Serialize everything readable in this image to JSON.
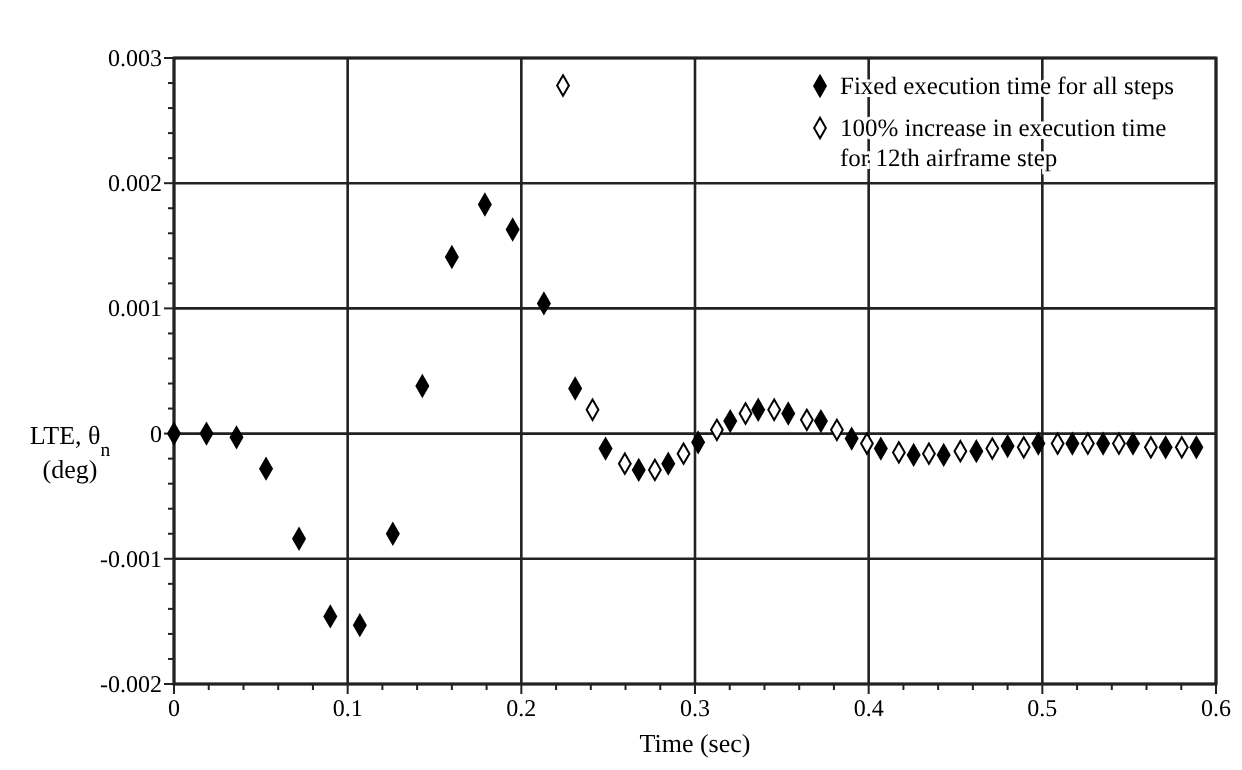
{
  "chart_data": {
    "type": "scatter",
    "xlabel": "Time (sec)",
    "ylabel": "LTE, θ$_{n}$ (deg)",
    "xlim": [
      0,
      0.6
    ],
    "ylim": [
      -0.002,
      0.003
    ],
    "xticks": [
      0,
      {
        "value": 0.02,
        "label": null
      },
      {
        "value": 0.04,
        "label": null
      },
      {
        "value": 0.06,
        "label": null
      },
      {
        "value": 0.08,
        "label": null
      },
      0.1,
      {
        "value": 0.12,
        "label": null
      },
      {
        "value": 0.14,
        "label": null
      },
      {
        "value": 0.16,
        "label": null
      },
      {
        "value": 0.18,
        "label": null
      },
      0.2,
      {
        "value": 0.22,
        "label": null
      },
      {
        "value": 0.24,
        "label": null
      },
      {
        "value": 0.26,
        "label": null
      },
      {
        "value": 0.28,
        "label": null
      },
      0.3,
      {
        "value": 0.32,
        "label": null
      },
      {
        "value": 0.34,
        "label": null
      },
      {
        "value": 0.36,
        "label": null
      },
      {
        "value": 0.38,
        "label": null
      },
      0.4,
      {
        "value": 0.42,
        "label": null
      },
      {
        "value": 0.44,
        "label": null
      },
      {
        "value": 0.46,
        "label": null
      },
      {
        "value": 0.48,
        "label": null
      },
      0.5,
      {
        "value": 0.52,
        "label": null
      },
      {
        "value": 0.54,
        "label": null
      },
      {
        "value": 0.56,
        "label": null
      },
      {
        "value": 0.58,
        "label": null
      },
      0.6
    ],
    "yticks": [
      -0.002,
      {
        "value": -0.0018,
        "label": null
      },
      {
        "value": -0.0016,
        "label": null
      },
      {
        "value": -0.0014,
        "label": null
      },
      {
        "value": -0.0012,
        "label": null
      },
      -0.001,
      {
        "value": -0.0008,
        "label": null
      },
      {
        "value": -0.0006,
        "label": null
      },
      {
        "value": -0.0004,
        "label": null
      },
      {
        "value": -0.0002,
        "label": null
      },
      0,
      {
        "value": 0.0002,
        "label": null
      },
      {
        "value": 0.0004,
        "label": null
      },
      {
        "value": 0.0006,
        "label": null
      },
      {
        "value": 0.0008,
        "label": null
      },
      0.001,
      {
        "value": 0.0012,
        "label": null
      },
      {
        "value": 0.0014,
        "label": null
      },
      {
        "value": 0.0016,
        "label": null
      },
      {
        "value": 0.0018,
        "label": null
      },
      0.002,
      {
        "value": 0.0022,
        "label": null
      },
      {
        "value": 0.0024,
        "label": null
      },
      {
        "value": 0.0026,
        "label": null
      },
      {
        "value": 0.0028,
        "label": null
      },
      0.003
    ],
    "grid": true,
    "legend": "top right",
    "marker": "diamond",
    "series": [
      {
        "name": "Fixed execution time for all steps",
        "color": "#000000",
        "x": [
          0,
          0.0187,
          0.036,
          0.053,
          0.072,
          0.09,
          0.107,
          0.126,
          0.143,
          0.16,
          0.179,
          0.195,
          0.213,
          0.231,
          0.2485,
          0.2676,
          0.2846,
          0.3018,
          0.3203,
          0.3364,
          0.3537,
          0.3725,
          0.3902,
          0.407,
          0.4259,
          0.4432,
          0.462,
          0.48,
          0.4977,
          0.5173,
          0.535,
          0.5522,
          0.571,
          0.5887
        ],
        "values": [
          0,
          0,
          -3e-05,
          -0.00028,
          -0.00084,
          -0.00146,
          -0.00153,
          -0.0008,
          0.00038,
          0.00141,
          0.00183,
          0.00163,
          0.00104,
          0.00036,
          -0.00012,
          -0.00029,
          -0.00024,
          -7e-05,
          0.0001,
          0.00019,
          0.00016,
          0.0001,
          -4e-05,
          -0.00012,
          -0.00017,
          -0.00017,
          -0.00014,
          -0.0001,
          -8e-05,
          -8e-05,
          -8e-05,
          -8e-05,
          -0.00011,
          -0.00011
        ]
      },
      {
        "name": "100% increase in execution time for 12th airframe step",
        "color": "#000000",
        "x": [
          0.224,
          0.241,
          0.2596,
          0.2769,
          0.2934,
          0.3126,
          0.3291,
          0.3456,
          0.3644,
          0.3817,
          0.399,
          0.4174,
          0.4347,
          0.4528,
          0.4712,
          0.4893,
          0.5088,
          0.5262,
          0.5441,
          0.5625,
          0.5803
        ],
        "values": [
          0.00278,
          0.00019,
          -0.00024,
          -0.00029,
          -0.00016,
          3e-05,
          0.00016,
          0.00019,
          0.00011,
          3e-05,
          -8e-05,
          -0.00015,
          -0.00016,
          -0.00014,
          -0.00012,
          -0.00011,
          -8e-05,
          -8e-05,
          -8e-05,
          -0.00011,
          -0.00011
        ]
      }
    ]
  }
}
